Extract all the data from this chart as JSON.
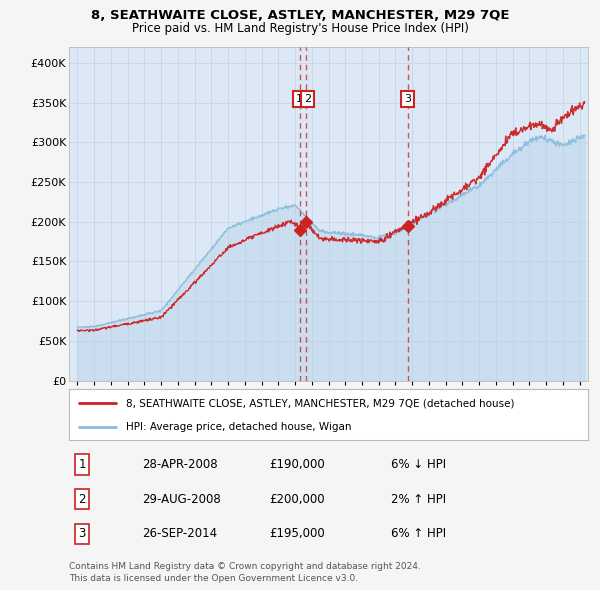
{
  "title1": "8, SEATHWAITE CLOSE, ASTLEY, MANCHESTER, M29 7QE",
  "title2": "Price paid vs. HM Land Registry's House Price Index (HPI)",
  "bg_color": "#f5f5f5",
  "plot_bg_color": "#dce8f5",
  "grid_color": "#c8d8e8",
  "hpi_color": "#88bbdd",
  "hpi_fill_color": "#b8d4ea",
  "price_color": "#cc2222",
  "marker_color": "#cc2222",
  "sale1": {
    "date_num": 2008.32,
    "price": 190000,
    "label": "1"
  },
  "sale2": {
    "date_num": 2008.66,
    "price": 200000,
    "label": "2"
  },
  "sale3": {
    "date_num": 2014.73,
    "price": 195000,
    "label": "3"
  },
  "ylim": [
    0,
    420000
  ],
  "xlim": [
    1994.5,
    2025.5
  ],
  "yticks": [
    0,
    50000,
    100000,
    150000,
    200000,
    250000,
    300000,
    350000,
    400000
  ],
  "ytick_labels": [
    "£0",
    "£50K",
    "£100K",
    "£150K",
    "£200K",
    "£250K",
    "£300K",
    "£350K",
    "£400K"
  ],
  "legend_label1": "8, SEATHWAITE CLOSE, ASTLEY, MANCHESTER, M29 7QE (detached house)",
  "legend_label2": "HPI: Average price, detached house, Wigan",
  "table_entries": [
    {
      "num": "1",
      "date": "28-APR-2008",
      "price": "£190,000",
      "hpi": "6% ↓ HPI"
    },
    {
      "num": "2",
      "date": "29-AUG-2008",
      "price": "£200,000",
      "hpi": "2% ↑ HPI"
    },
    {
      "num": "3",
      "date": "26-SEP-2014",
      "price": "£195,000",
      "hpi": "6% ↑ HPI"
    }
  ],
  "footer": "Contains HM Land Registry data © Crown copyright and database right 2024.\nThis data is licensed under the Open Government Licence v3.0."
}
